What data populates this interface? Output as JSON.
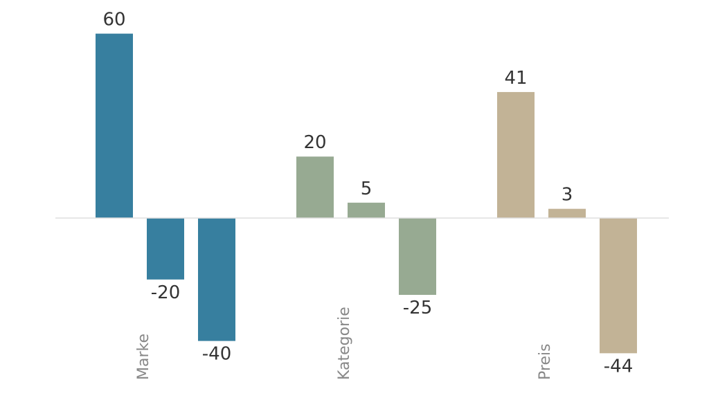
{
  "chart_data": {
    "type": "bar",
    "title": "",
    "xlabel": "",
    "ylabel": "",
    "ylim": [
      -50,
      66
    ],
    "grid": false,
    "legend": "none",
    "groups": [
      {
        "label": "Marke",
        "color": "#377f9f",
        "values": [
          60,
          -20,
          -40
        ]
      },
      {
        "label": "Kategorie",
        "color": "#97aa92",
        "values": [
          20,
          5,
          -25
        ]
      },
      {
        "label": "Preis",
        "color": "#c2b396",
        "values": [
          41,
          3,
          -44
        ]
      }
    ],
    "baseline_color": "#dddddd"
  }
}
